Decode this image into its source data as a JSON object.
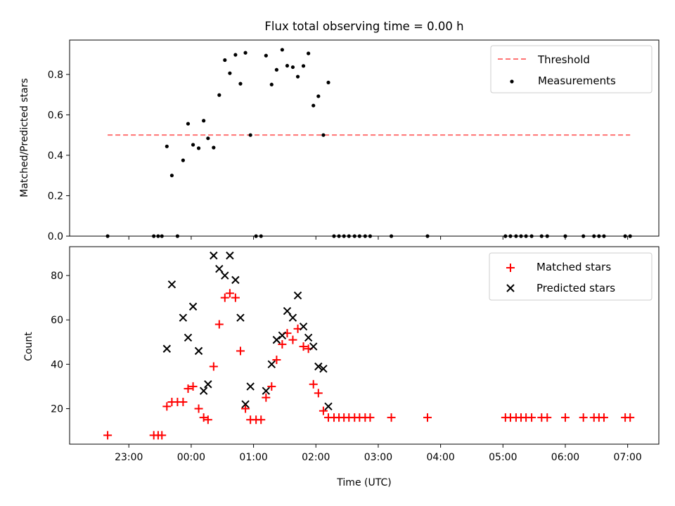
{
  "chart_data": [
    {
      "type": "scatter",
      "title": "Flux total observing time = 0.00 h",
      "xlabel": "",
      "ylabel": "Matched/Predicted stars",
      "x_unit": "hours since 00:00 UTC",
      "xlim": [
        -1.95,
        7.5
      ],
      "ylim": [
        0,
        0.97
      ],
      "yticks": [
        0.0,
        0.2,
        0.4,
        0.6,
        0.8
      ],
      "ytick_labels": [
        "0.0",
        "0.2",
        "0.4",
        "0.6",
        "0.8"
      ],
      "legend_position": "top-right",
      "threshold": {
        "name": "Threshold",
        "value": 0.5,
        "x_range": [
          -1.34,
          7.04
        ],
        "color": "#ff7373",
        "style": "dashed"
      },
      "series": [
        {
          "name": "Measurements",
          "color": "#000000",
          "marker": "dot",
          "points": [
            [
              -1.34,
              0.0
            ],
            [
              -0.6,
              0.0
            ],
            [
              -0.53,
              0.0
            ],
            [
              -0.47,
              0.0
            ],
            [
              -0.39,
              0.444
            ],
            [
              -0.31,
              0.3
            ],
            [
              -0.22,
              0.0
            ],
            [
              -0.13,
              0.375
            ],
            [
              -0.05,
              0.556
            ],
            [
              0.03,
              0.452
            ],
            [
              0.12,
              0.435
            ],
            [
              0.2,
              0.571
            ],
            [
              0.27,
              0.484
            ],
            [
              0.36,
              0.438
            ],
            [
              0.45,
              0.698
            ],
            [
              0.54,
              0.871
            ],
            [
              0.62,
              0.806
            ],
            [
              0.71,
              0.897
            ],
            [
              0.79,
              0.754
            ],
            [
              0.87,
              0.907
            ],
            [
              0.95,
              0.5
            ],
            [
              1.04,
              0.0
            ],
            [
              1.12,
              0.0
            ],
            [
              1.2,
              0.893
            ],
            [
              1.29,
              0.75
            ],
            [
              1.37,
              0.823
            ],
            [
              1.46,
              0.922
            ],
            [
              1.54,
              0.843
            ],
            [
              1.63,
              0.836
            ],
            [
              1.71,
              0.789
            ],
            [
              1.8,
              0.842
            ],
            [
              1.88,
              0.904
            ],
            [
              1.96,
              0.646
            ],
            [
              2.04,
              0.692
            ],
            [
              2.12,
              0.5
            ],
            [
              2.2,
              0.76
            ],
            [
              2.29,
              0.0
            ],
            [
              2.37,
              0.0
            ],
            [
              2.45,
              0.0
            ],
            [
              2.53,
              0.0
            ],
            [
              2.62,
              0.0
            ],
            [
              2.7,
              0.0
            ],
            [
              2.79,
              0.0
            ],
            [
              2.87,
              0.0
            ],
            [
              3.21,
              0.0
            ],
            [
              3.79,
              0.0
            ],
            [
              5.04,
              0.0
            ],
            [
              5.12,
              0.0
            ],
            [
              5.21,
              0.0
            ],
            [
              5.29,
              0.0
            ],
            [
              5.37,
              0.0
            ],
            [
              5.46,
              0.0
            ],
            [
              5.62,
              0.0
            ],
            [
              5.71,
              0.0
            ],
            [
              6.0,
              0.0
            ],
            [
              6.29,
              0.0
            ],
            [
              6.46,
              0.0
            ],
            [
              6.54,
              0.0
            ],
            [
              6.62,
              0.0
            ],
            [
              6.96,
              0.0
            ],
            [
              7.04,
              0.0
            ]
          ]
        }
      ]
    },
    {
      "type": "scatter",
      "title": "",
      "xlabel": "Time (UTC)",
      "ylabel": "Count",
      "x_unit": "hours since 00:00 UTC",
      "xlim": [
        -1.95,
        7.5
      ],
      "ylim": [
        4,
        93
      ],
      "yticks": [
        20,
        40,
        60,
        80
      ],
      "ytick_labels": [
        "20",
        "40",
        "60",
        "80"
      ],
      "xticks": [
        -1,
        0,
        1,
        2,
        3,
        4,
        5,
        6,
        7
      ],
      "xtick_labels": [
        "23:00",
        "00:00",
        "01:00",
        "02:00",
        "03:00",
        "04:00",
        "05:00",
        "06:00",
        "07:00"
      ],
      "legend_position": "top-right",
      "series": [
        {
          "name": "Matched stars",
          "color": "#ff0000",
          "marker": "plus",
          "points": [
            [
              -1.34,
              8
            ],
            [
              -0.6,
              8
            ],
            [
              -0.53,
              8
            ],
            [
              -0.47,
              8
            ],
            [
              -0.39,
              21
            ],
            [
              -0.31,
              23
            ],
            [
              -0.22,
              23
            ],
            [
              -0.13,
              23
            ],
            [
              -0.05,
              29
            ],
            [
              0.03,
              30
            ],
            [
              0.12,
              20
            ],
            [
              0.2,
              16
            ],
            [
              0.27,
              15
            ],
            [
              0.36,
              39
            ],
            [
              0.45,
              58
            ],
            [
              0.54,
              70
            ],
            [
              0.62,
              72
            ],
            [
              0.71,
              70
            ],
            [
              0.79,
              46
            ],
            [
              0.87,
              20
            ],
            [
              0.95,
              15
            ],
            [
              1.04,
              15
            ],
            [
              1.12,
              15
            ],
            [
              1.2,
              25
            ],
            [
              1.29,
              30
            ],
            [
              1.37,
              42
            ],
            [
              1.46,
              49
            ],
            [
              1.54,
              54
            ],
            [
              1.63,
              51
            ],
            [
              1.71,
              56
            ],
            [
              1.8,
              48
            ],
            [
              1.88,
              47
            ],
            [
              1.96,
              31
            ],
            [
              2.04,
              27
            ],
            [
              2.12,
              19
            ],
            [
              2.2,
              16
            ],
            [
              2.29,
              16
            ],
            [
              2.37,
              16
            ],
            [
              2.45,
              16
            ],
            [
              2.53,
              16
            ],
            [
              2.62,
              16
            ],
            [
              2.7,
              16
            ],
            [
              2.79,
              16
            ],
            [
              2.87,
              16
            ],
            [
              3.21,
              16
            ],
            [
              3.79,
              16
            ],
            [
              5.04,
              16
            ],
            [
              5.12,
              16
            ],
            [
              5.21,
              16
            ],
            [
              5.29,
              16
            ],
            [
              5.37,
              16
            ],
            [
              5.46,
              16
            ],
            [
              5.62,
              16
            ],
            [
              5.71,
              16
            ],
            [
              6.0,
              16
            ],
            [
              6.29,
              16
            ],
            [
              6.46,
              16
            ],
            [
              6.54,
              16
            ],
            [
              6.62,
              16
            ],
            [
              6.96,
              16
            ],
            [
              7.04,
              16
            ]
          ]
        },
        {
          "name": "Predicted stars",
          "color": "#000000",
          "marker": "x",
          "points": [
            [
              -0.39,
              47
            ],
            [
              -0.31,
              76
            ],
            [
              -0.13,
              61
            ],
            [
              -0.05,
              52
            ],
            [
              0.03,
              66
            ],
            [
              0.12,
              46
            ],
            [
              0.2,
              28
            ],
            [
              0.27,
              31
            ],
            [
              0.36,
              89
            ],
            [
              0.45,
              83
            ],
            [
              0.54,
              80
            ],
            [
              0.62,
              89
            ],
            [
              0.71,
              78
            ],
            [
              0.79,
              61
            ],
            [
              0.87,
              22
            ],
            [
              0.95,
              30
            ],
            [
              1.2,
              28
            ],
            [
              1.29,
              40
            ],
            [
              1.37,
              51
            ],
            [
              1.46,
              53
            ],
            [
              1.54,
              64
            ],
            [
              1.63,
              61
            ],
            [
              1.71,
              71
            ],
            [
              1.8,
              57
            ],
            [
              1.88,
              52
            ],
            [
              1.96,
              48
            ],
            [
              2.04,
              39
            ],
            [
              2.12,
              38
            ],
            [
              2.2,
              21
            ]
          ]
        }
      ]
    }
  ]
}
